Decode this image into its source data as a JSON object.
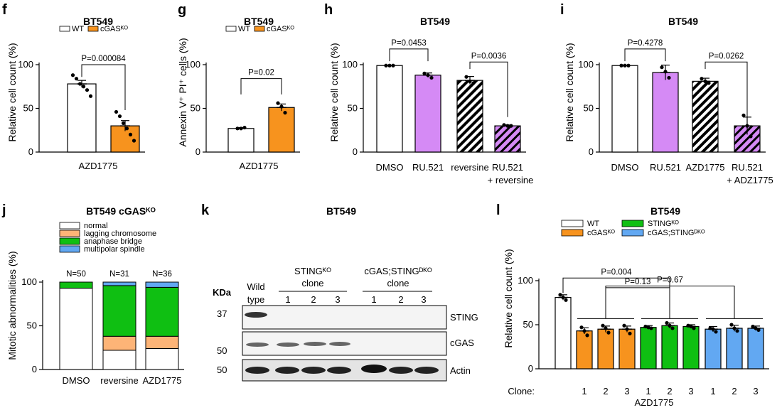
{
  "colors": {
    "orange": "#f7931e",
    "violet": "#d58af5",
    "green": "#0fbf12",
    "blue": "#62a8f2",
    "light_orange": "#fdb477",
    "white": "#ffffff"
  },
  "chart_data": [
    {
      "panel": "f",
      "type": "bar",
      "title": "BT549",
      "ylabel": "Relative cell count (%)",
      "ylim": [
        0,
        100
      ],
      "yticks": [
        0,
        50,
        100
      ],
      "group_label": "AZD1775",
      "legend": [
        "WT",
        "cGASᴷᴼ"
      ],
      "categories": [
        "WT",
        "cGAS KO"
      ],
      "values": [
        78,
        30
      ],
      "errors": [
        4,
        6
      ],
      "points": [
        [
          88,
          84,
          78,
          75,
          71,
          64
        ],
        [
          46,
          41,
          33,
          27,
          20,
          13
        ]
      ],
      "pvalues": [
        {
          "text": "P=0.000084",
          "from": 0,
          "to": 1
        }
      ]
    },
    {
      "panel": "g",
      "type": "bar",
      "title": "BT549",
      "ylabel": "Annexin V⁺ PI⁺ cells  (%)",
      "ylim": [
        0,
        100
      ],
      "yticks": [
        0,
        50,
        100
      ],
      "group_label": "AZD1775",
      "legend": [
        "WT",
        "cGASᴷᴼ"
      ],
      "categories": [
        "WT",
        "cGAS KO"
      ],
      "values": [
        27,
        51
      ],
      "errors": [
        1,
        4
      ],
      "points": [
        [
          27,
          27,
          28
        ],
        [
          56,
          52,
          45
        ]
      ],
      "pvalues": [
        {
          "text": "P=0.02",
          "from": 0,
          "to": 1
        }
      ]
    },
    {
      "panel": "h",
      "type": "bar",
      "title": "BT549",
      "ylabel": "Relative cell count (%)",
      "ylim": [
        0,
        100
      ],
      "yticks": [
        0,
        50,
        100
      ],
      "categories": [
        "DMSO",
        "RU.521",
        "reversine",
        "RU.521\n+ reversine"
      ],
      "values": [
        99,
        88,
        82,
        30
      ],
      "errors": [
        0,
        2.5,
        4.5,
        1
      ],
      "points": [
        [
          99,
          99,
          99
        ],
        [
          90,
          88,
          85
        ],
        [
          86,
          81,
          79
        ],
        [
          31,
          30,
          30
        ]
      ],
      "pvalues": [
        {
          "text": "P=0.0453",
          "from": 0,
          "to": 1
        },
        {
          "text": "P=0.0036",
          "from": 2,
          "to": 3
        }
      ]
    },
    {
      "panel": "i",
      "type": "bar",
      "title": "BT549",
      "ylabel": "Relative cell count (%)",
      "ylim": [
        0,
        100
      ],
      "yticks": [
        0,
        50,
        100
      ],
      "categories": [
        "DMSO",
        "RU.521",
        "AZD1775",
        "RU.521\n+ ADZ1775"
      ],
      "values": [
        99,
        91,
        81,
        30
      ],
      "errors": [
        0,
        8.5,
        3.5,
        10
      ],
      "points": [
        [
          99,
          99,
          99
        ],
        [
          97,
          92,
          85
        ],
        [
          84,
          81,
          79
        ],
        [
          42,
          30,
          18
        ]
      ],
      "pvalues": [
        {
          "text": "P=0.4278",
          "from": 0,
          "to": 1
        },
        {
          "text": "P=0.0262",
          "from": 2,
          "to": 3
        }
      ]
    },
    {
      "panel": "j",
      "type": "stacked_bar",
      "title": "BT549 cGASᴷᴼ",
      "ylabel": "Mitotic abnormalities (%)",
      "ylim": [
        0,
        100
      ],
      "yticks": [
        0,
        50,
        100
      ],
      "categories": [
        "DMSO",
        "reversine",
        "AZD1775"
      ],
      "n_labels": [
        "N=50",
        "N=31",
        "N=36"
      ],
      "series": [
        {
          "name": "normal",
          "values": [
            93,
            22,
            24
          ]
        },
        {
          "name": "lagging chromosome",
          "values": [
            0,
            16,
            14
          ]
        },
        {
          "name": "anaphase bridge",
          "values": [
            7,
            58,
            56
          ]
        },
        {
          "name": "multipolar spindle",
          "values": [
            0,
            4,
            6
          ]
        }
      ]
    },
    {
      "panel": "l",
      "type": "bar",
      "title": "BT549",
      "ylabel": "Relative cell count (%)",
      "ylim": [
        0,
        100
      ],
      "yticks": [
        0,
        50,
        100
      ],
      "xprefix": "Clone:",
      "group_label": "AZD1775",
      "legend": [
        "WT",
        "cGASᴷᴼ",
        "STINGᴷᴼ",
        "cGAS;STINGᴰᴷᴼ"
      ],
      "categories": [
        "WT",
        "1",
        "2",
        "3",
        "1",
        "2",
        "3",
        "1",
        "2",
        "3"
      ],
      "values": [
        81,
        43,
        45,
        45,
        47,
        49,
        48,
        45,
        46,
        46
      ],
      "errors": [
        3,
        3.5,
        3.5,
        3.5,
        2,
        3,
        2,
        3,
        3.5,
        2.5
      ],
      "points": [
        [
          84,
          81,
          78
        ],
        [
          47,
          43,
          38
        ],
        [
          49,
          46,
          41
        ],
        [
          49,
          45,
          40
        ],
        [
          48,
          47,
          46
        ],
        [
          52,
          49,
          46
        ],
        [
          49,
          48,
          46
        ],
        [
          46,
          45,
          42
        ],
        [
          50,
          46,
          43
        ],
        [
          48,
          46,
          44
        ]
      ],
      "pvalues": [
        {
          "text": "P=0.004",
          "from": 0,
          "to": 5
        },
        {
          "text": "P=0.13",
          "from": 2,
          "to": 5
        },
        {
          "text": "P=0.67",
          "from": 2,
          "to": 8
        }
      ]
    }
  ],
  "blot": {
    "panel": "k",
    "title": "BT549",
    "kda_label": "KDa",
    "header_wt": [
      "Wild",
      "type"
    ],
    "header_sting": "STINGᴷᴼ",
    "header_dko": "cGAS;STINGᴰᴷᴼ",
    "clone_word": "clone",
    "clones": [
      "1",
      "2",
      "3",
      "1",
      "2",
      "3"
    ],
    "markers": [
      "37",
      "50",
      "50"
    ],
    "rows": [
      "STING",
      "cGAS",
      "Actin"
    ]
  }
}
